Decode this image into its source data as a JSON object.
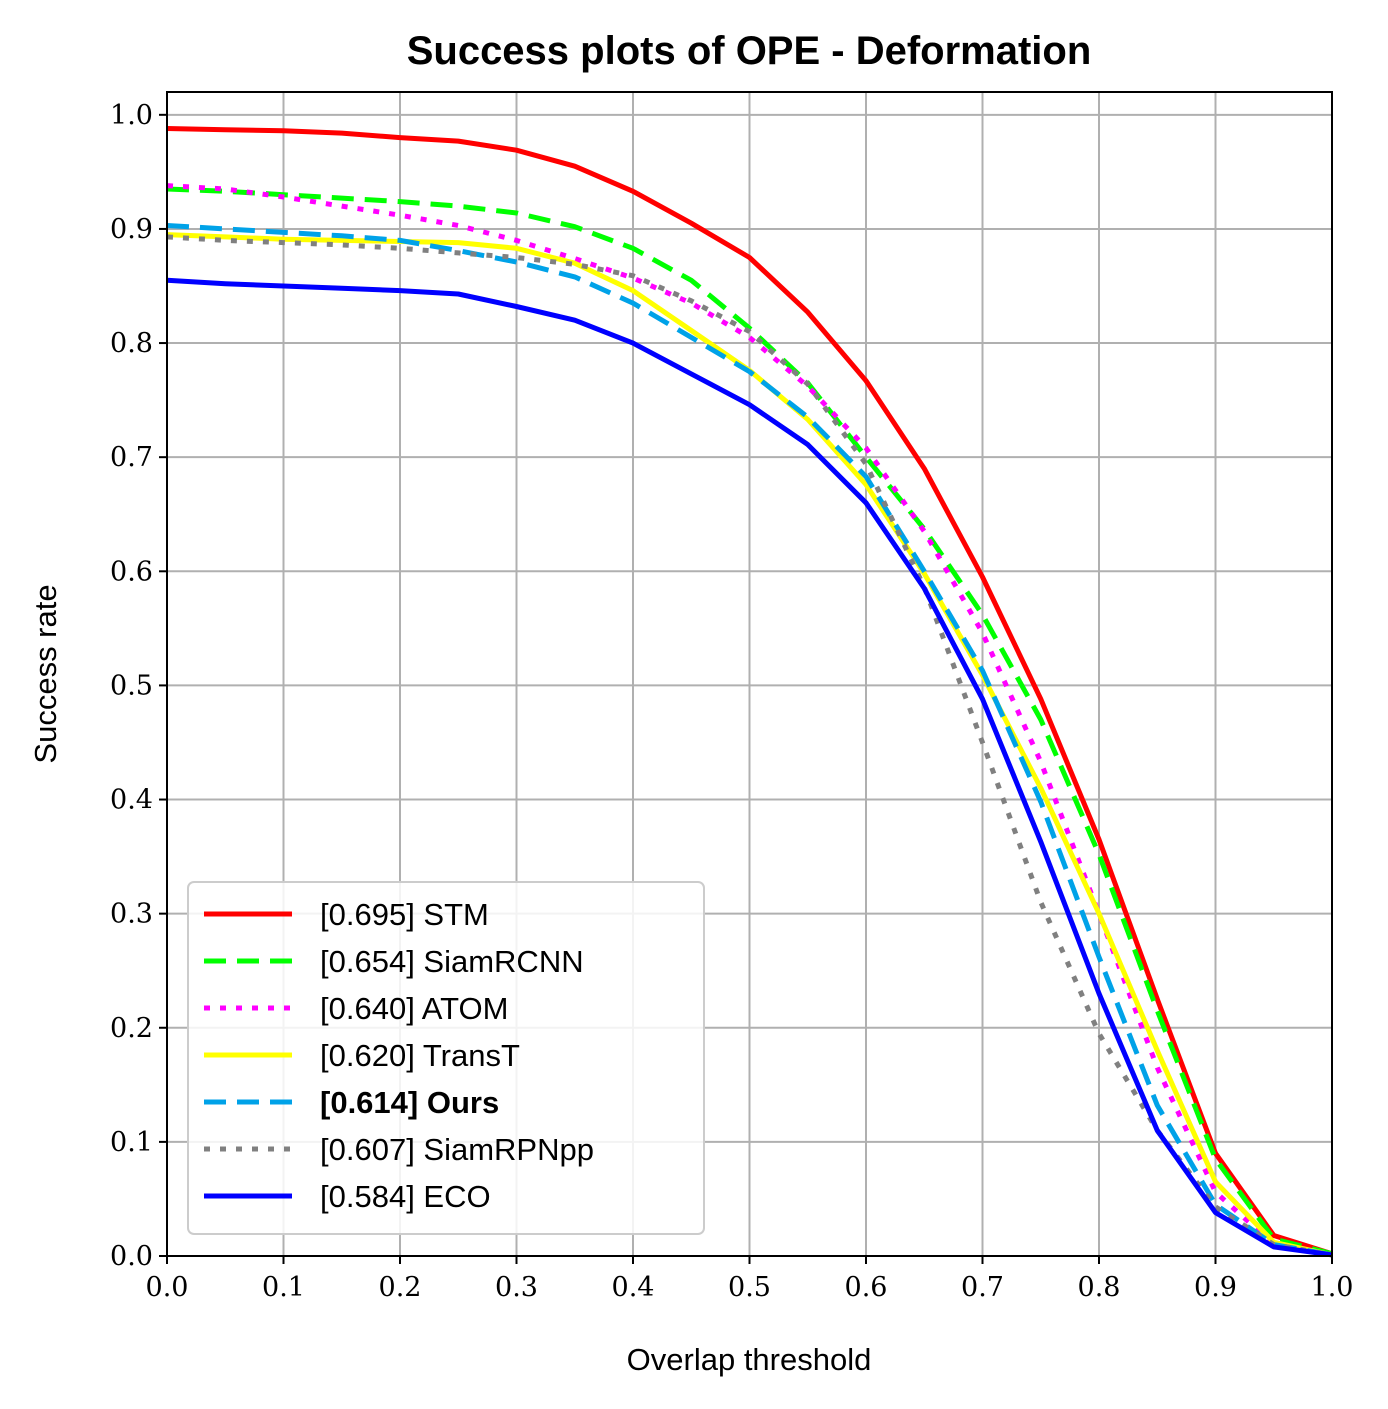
{
  "chart_data": {
    "type": "line",
    "title": "Success plots of OPE - Deformation",
    "xlabel": "Overlap threshold",
    "ylabel": "Success rate",
    "xlim": [
      0,
      1
    ],
    "ylim": [
      0,
      1.02
    ],
    "xticks": [
      "0.0",
      "0.1",
      "0.2",
      "0.3",
      "0.4",
      "0.5",
      "0.6",
      "0.7",
      "0.8",
      "0.9",
      "1.0"
    ],
    "yticks": [
      "0.0",
      "0.1",
      "0.2",
      "0.3",
      "0.4",
      "0.5",
      "0.6",
      "0.7",
      "0.8",
      "0.9",
      "1.0"
    ],
    "grid": true,
    "legend_position": "lower-left",
    "x": [
      0.0,
      0.05,
      0.1,
      0.15,
      0.2,
      0.25,
      0.3,
      0.35,
      0.4,
      0.45,
      0.5,
      0.55,
      0.6,
      0.65,
      0.7,
      0.75,
      0.8,
      0.85,
      0.9,
      0.95,
      1.0
    ],
    "series": [
      {
        "name": "[0.695] STM",
        "color": "#ff0000",
        "dash": "solid",
        "bold": false,
        "values": [
          0.988,
          0.987,
          0.986,
          0.984,
          0.98,
          0.977,
          0.969,
          0.955,
          0.933,
          0.905,
          0.875,
          0.827,
          0.767,
          0.69,
          0.595,
          0.488,
          0.365,
          0.225,
          0.09,
          0.018,
          0.002
        ]
      },
      {
        "name": "[0.654] SiamRCNN",
        "color": "#00ff00",
        "dash": "dashed",
        "bold": false,
        "values": [
          0.935,
          0.933,
          0.93,
          0.927,
          0.924,
          0.92,
          0.914,
          0.902,
          0.883,
          0.855,
          0.813,
          0.765,
          0.7,
          0.637,
          0.562,
          0.47,
          0.352,
          0.215,
          0.085,
          0.015,
          0.002
        ]
      },
      {
        "name": "[0.640] ATOM",
        "color": "#ff00ff",
        "dash": "dotted",
        "bold": false,
        "values": [
          0.938,
          0.935,
          0.928,
          0.92,
          0.912,
          0.903,
          0.89,
          0.874,
          0.857,
          0.835,
          0.805,
          0.762,
          0.708,
          0.635,
          0.546,
          0.433,
          0.3,
          0.165,
          0.056,
          0.01,
          0.001
        ]
      },
      {
        "name": "[0.620] TransT",
        "color": "#ffff00",
        "dash": "solid",
        "bold": false,
        "values": [
          0.895,
          0.893,
          0.891,
          0.89,
          0.889,
          0.888,
          0.883,
          0.87,
          0.846,
          0.811,
          0.776,
          0.733,
          0.676,
          0.598,
          0.509,
          0.41,
          0.3,
          0.18,
          0.065,
          0.012,
          0.001
        ]
      },
      {
        "name": "[0.614] Ours",
        "color": "#00a2e8",
        "dash": "dashed",
        "bold": true,
        "values": [
          0.903,
          0.9,
          0.897,
          0.894,
          0.89,
          0.881,
          0.871,
          0.858,
          0.835,
          0.805,
          0.775,
          0.735,
          0.683,
          0.6,
          0.513,
          0.398,
          0.262,
          0.132,
          0.045,
          0.01,
          0.001
        ]
      },
      {
        "name": "[0.607] SiamRPNpp",
        "color": "#808080",
        "dash": "dotted",
        "bold": false,
        "values": [
          0.893,
          0.89,
          0.888,
          0.886,
          0.883,
          0.879,
          0.875,
          0.869,
          0.859,
          0.837,
          0.81,
          0.764,
          0.694,
          0.586,
          0.45,
          0.31,
          0.195,
          0.11,
          0.043,
          0.01,
          0.001
        ]
      },
      {
        "name": "[0.584] ECO",
        "color": "#0000ff",
        "dash": "solid",
        "bold": false,
        "values": [
          0.855,
          0.852,
          0.85,
          0.848,
          0.846,
          0.843,
          0.832,
          0.82,
          0.8,
          0.773,
          0.746,
          0.711,
          0.66,
          0.585,
          0.488,
          0.363,
          0.23,
          0.11,
          0.038,
          0.008,
          0.001
        ]
      }
    ]
  }
}
